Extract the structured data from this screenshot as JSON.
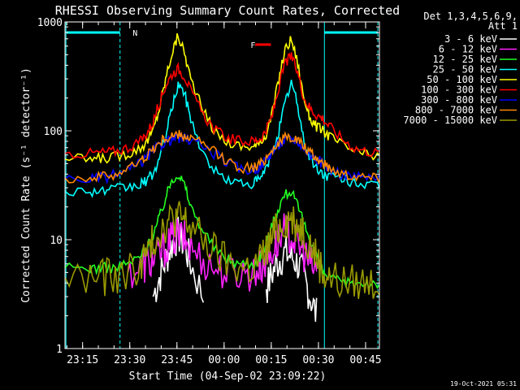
{
  "chart_data": {
    "type": "line",
    "title": "RHESSI Observing Summary Count Rates, Corrected",
    "xlabel": "Start Time (04-Sep-02 23:09:22)",
    "ylabel": "Corrected Count Rate (s⁻¹ detector⁻¹)",
    "x_unit": "minutes after 23:09:22",
    "xlim": [
      0,
      100
    ],
    "ylim": [
      1,
      1000
    ],
    "y_scale": "log",
    "x_ticks": [
      {
        "label": "23:15",
        "value": 5.6
      },
      {
        "label": "23:30",
        "value": 20.6
      },
      {
        "label": "23:45",
        "value": 35.6
      },
      {
        "label": "00:00",
        "value": 50.6
      },
      {
        "label": "00:15",
        "value": 65.6
      },
      {
        "label": "00:30",
        "value": 80.6
      },
      {
        "label": "00:45",
        "value": 95.6
      }
    ],
    "y_ticks": [
      {
        "label": "1",
        "value": 1
      },
      {
        "label": "10",
        "value": 10
      },
      {
        "label": "100",
        "value": 100
      },
      {
        "label": "1000",
        "value": 1000
      }
    ],
    "legend_header": [
      "Det 1,3,4,5,6,9,",
      "Att 1"
    ],
    "legend_position": "right",
    "x": [
      0,
      8,
      12,
      16,
      20,
      24,
      26,
      28,
      30,
      32,
      34,
      36,
      38,
      40,
      44,
      48,
      52,
      56,
      60,
      62,
      64,
      66,
      68,
      70,
      72,
      74,
      76,
      78,
      80,
      82,
      84,
      88,
      92,
      96,
      100
    ],
    "series": [
      {
        "name": "3 - 6 keV",
        "color": "#ffffff",
        "values": [
          null,
          null,
          null,
          null,
          null,
          null,
          null,
          3.0,
          4.5,
          6.5,
          9,
          11,
          9,
          6,
          3.0,
          null,
          null,
          null,
          null,
          null,
          3.5,
          5,
          6.5,
          7.5,
          7,
          6,
          4.5,
          3,
          2,
          null,
          null,
          null,
          null,
          null,
          null
        ]
      },
      {
        "name": "6 - 12 keV",
        "color": "#ff22ff",
        "values": [
          null,
          null,
          null,
          null,
          5.0,
          5.5,
          6,
          6.5,
          7.5,
          8.5,
          10,
          11,
          10,
          8.5,
          6.5,
          5.5,
          5,
          5,
          5,
          5.5,
          6.5,
          8,
          10,
          12,
          11,
          9,
          7.5,
          6,
          5,
          null,
          null,
          null,
          null,
          null,
          null
        ]
      },
      {
        "name": "12 - 25 keV",
        "color": "#22ff22",
        "values": [
          5.5,
          5.5,
          5.5,
          5.5,
          6,
          7,
          8.5,
          11,
          16,
          24,
          36,
          40,
          32,
          20,
          12,
          8,
          6.5,
          6,
          6,
          7,
          9,
          14,
          20,
          26,
          28,
          20,
          14,
          10,
          7,
          5,
          4.5,
          4,
          4,
          4,
          4
        ]
      },
      {
        "name": "25 - 50 keV",
        "color": "#00ffff",
        "values": [
          28,
          28,
          28,
          29,
          30,
          32,
          35,
          40,
          55,
          90,
          160,
          270,
          220,
          130,
          60,
          42,
          35,
          33,
          33,
          36,
          45,
          65,
          100,
          180,
          280,
          170,
          80,
          55,
          45,
          40,
          38,
          36,
          34,
          32,
          30
        ]
      },
      {
        "name": "50 - 100 keV",
        "color": "#ffff00",
        "values": [
          55,
          55,
          56,
          58,
          62,
          70,
          80,
          100,
          160,
          300,
          520,
          750,
          520,
          300,
          150,
          95,
          78,
          72,
          72,
          76,
          95,
          150,
          300,
          560,
          700,
          420,
          200,
          130,
          110,
          100,
          90,
          75,
          65,
          60,
          58
        ]
      },
      {
        "name": "100 - 300 keV",
        "color": "#ff0000",
        "values": [
          62,
          62,
          63,
          65,
          70,
          80,
          95,
          120,
          180,
          260,
          330,
          370,
          320,
          230,
          140,
          100,
          85,
          80,
          80,
          85,
          100,
          140,
          250,
          420,
          480,
          340,
          200,
          160,
          140,
          130,
          110,
          85,
          70,
          65,
          62
        ]
      },
      {
        "name": "300 - 800 keV",
        "color": "#0000ff",
        "values": [
          36,
          36,
          37,
          39,
          43,
          50,
          57,
          65,
          73,
          80,
          84,
          86,
          85,
          82,
          72,
          60,
          50,
          44,
          44,
          47,
          55,
          65,
          75,
          82,
          85,
          80,
          70,
          60,
          55,
          50,
          45,
          40,
          38,
          37,
          36
        ]
      },
      {
        "name": "800 - 7000 keV",
        "color": "#ff8800",
        "values": [
          37,
          37,
          38,
          40,
          45,
          52,
          60,
          68,
          77,
          85,
          89,
          91,
          89,
          85,
          75,
          62,
          52,
          46,
          46,
          49,
          57,
          68,
          78,
          85,
          88,
          82,
          72,
          62,
          56,
          51,
          46,
          41,
          39,
          38,
          37
        ]
      },
      {
        "name": "7000 - 15000 keV",
        "color": "#999900",
        "values": [
          4.5,
          4.5,
          4.5,
          4.6,
          5,
          6,
          7.5,
          9.5,
          12,
          14,
          15.5,
          16,
          15,
          13,
          10,
          7.5,
          6,
          5.5,
          5.5,
          6.5,
          8,
          10.5,
          13,
          15,
          15.5,
          14,
          12,
          9,
          7,
          5,
          4.5,
          4,
          4,
          4,
          4
        ]
      }
    ],
    "annotations": [
      {
        "text": "N",
        "x": 21.5,
        "y": 800,
        "color": "#00ffff"
      },
      {
        "text": "F",
        "x": 59,
        "y": 620,
        "color": "#ff0000"
      }
    ],
    "footer": "19-Oct-2021 05:31"
  }
}
